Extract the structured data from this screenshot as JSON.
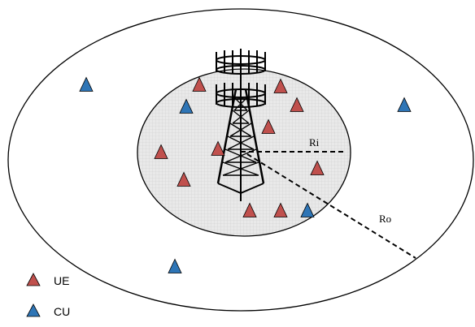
{
  "labels": {
    "inner_radius": "Ri",
    "outer_radius": "Ro"
  },
  "legend": [
    {
      "label": "UE",
      "color": "#c0504d"
    },
    {
      "label": "CU",
      "color": "#2e75b6"
    }
  ],
  "colors": {
    "ue": "#c0504d",
    "cu": "#2e75b6",
    "inner_zone": "#e6e6e6",
    "outline": "#000000"
  },
  "icons": [
    "base-station-tower-icon",
    "triangle-icon"
  ]
}
